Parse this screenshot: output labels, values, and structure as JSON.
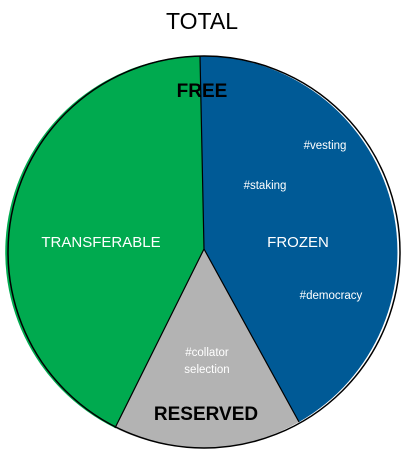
{
  "title": "TOTAL",
  "sections": {
    "free": {
      "label": "FREE"
    },
    "transferable": {
      "label": "TRANSFERABLE",
      "color": "#00aa4f"
    },
    "frozen": {
      "label": "FROZEN",
      "color": "#005a96"
    },
    "reserved": {
      "label": "RESERVED",
      "color": "#b3b3b3"
    }
  },
  "tags": {
    "frozen": [
      "#vesting",
      "#staking",
      "#democracy"
    ],
    "reserved": [
      "#collator",
      "selection"
    ]
  },
  "colors": {
    "outline": "#000000",
    "background": "#ffffff"
  }
}
